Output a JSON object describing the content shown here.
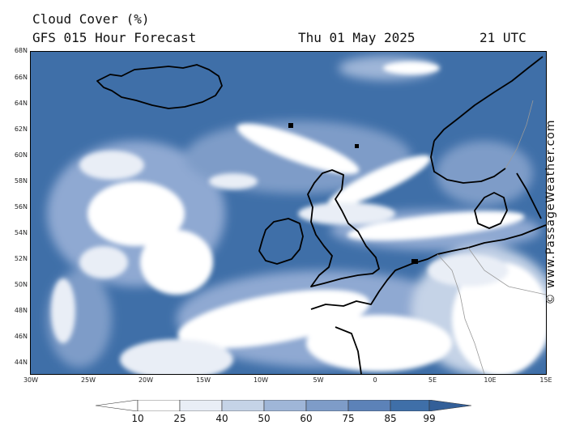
{
  "header": {
    "title": "Cloud Cover (%)",
    "subtitle": "GFS 015 Hour Forecast",
    "date": "Thu 01 May 2025",
    "time": "21 UTC"
  },
  "map": {
    "lat_labels": [
      "66N",
      "64N",
      "62N",
      "60N",
      "58N",
      "56N",
      "54N",
      "52N",
      "50N",
      "48N",
      "46N",
      "44N"
    ],
    "lon_labels": [
      "30W",
      "25W",
      "20W",
      "15W",
      "10W",
      "5W",
      "0",
      "5E",
      "10E",
      "15E"
    ],
    "corner_lat_label": "68N",
    "colors": {
      "ocean_cloud": "#3f6fa8",
      "clear": "#ffffff",
      "coast": "#000000",
      "border": "#999999"
    }
  },
  "legend": {
    "labels": [
      "10",
      "25",
      "40",
      "50",
      "60",
      "75",
      "85",
      "99"
    ],
    "colors": [
      "#ffffff",
      "#ffffff",
      "#e9eef6",
      "#c5d3e7",
      "#9fb6d8",
      "#7e9cc8",
      "#5c82b8",
      "#3f6fa8",
      "#335f98"
    ]
  },
  "watermark": "© www.PassageWeather.com"
}
